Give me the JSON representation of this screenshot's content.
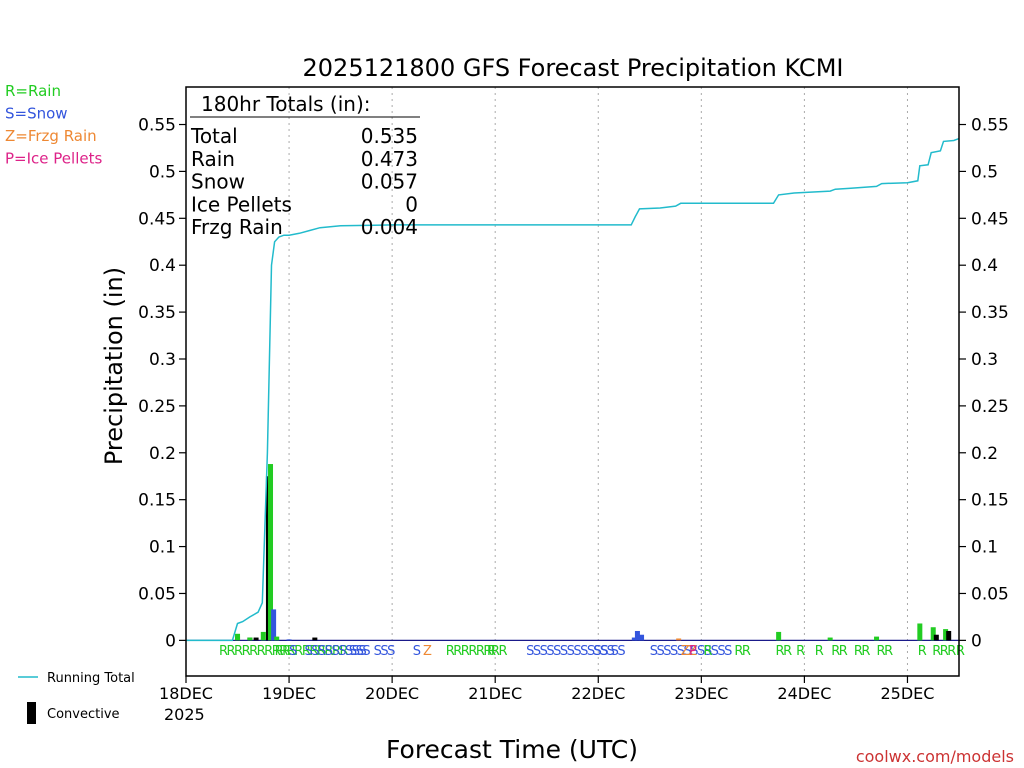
{
  "chart_data": {
    "type": "bar",
    "title": "2025121800 GFS Forecast Precipitation KCMI",
    "xlabel": "Forecast Time (UTC)",
    "ylabel": "Precipitation (in)",
    "ylim": [
      -0.038,
      0.59
    ],
    "xlim_days": [
      0,
      7.5
    ],
    "y_ticks": [
      0,
      0.05,
      0.1,
      0.15,
      0.2,
      0.25,
      0.3,
      0.35,
      0.4,
      0.45,
      0.5,
      0.55
    ],
    "y_tick_labels": [
      "0",
      "0.05",
      "0.1",
      "0.15",
      "0.2",
      "0.25",
      "0.3",
      "0.35",
      "0.4",
      "0.45",
      "0.5",
      "0.55"
    ],
    "x_ticks": [
      {
        "day": 0,
        "label": "18DEC",
        "sublabel": "2025"
      },
      {
        "day": 1,
        "label": "19DEC"
      },
      {
        "day": 2,
        "label": "20DEC"
      },
      {
        "day": 3,
        "label": "21DEC"
      },
      {
        "day": 4,
        "label": "22DEC"
      },
      {
        "day": 5,
        "label": "23DEC"
      },
      {
        "day": 6,
        "label": "24DEC"
      },
      {
        "day": 7,
        "label": "25DEC"
      }
    ],
    "legend_types": [
      {
        "text": "R=Rain",
        "color": "#22cc22"
      },
      {
        "text": "S=Snow",
        "color": "#3355dd"
      },
      {
        "text": "Z=Frzg Rain",
        "color": "#ee8833"
      },
      {
        "text": "P=Ice Pellets",
        "color": "#dd2288"
      }
    ],
    "legend_lines": [
      {
        "text": "Running Total",
        "color": "#22bbcc",
        "kind": "line"
      },
      {
        "text": "Convective",
        "color": "#000000",
        "kind": "bar"
      }
    ],
    "totals_box": {
      "header": "180hr Totals (in):",
      "rows": [
        {
          "label": "Total",
          "value": "0.535"
        },
        {
          "label": "Rain",
          "value": "0.473"
        },
        {
          "label": "Snow",
          "value": "0.057"
        },
        {
          "label": "Ice Pellets",
          "value": "0"
        },
        {
          "label": "Frzg Rain",
          "value": "0.004"
        }
      ]
    },
    "watermark": "coolwx.com/models",
    "running_total": {
      "color": "#22bbcc",
      "points": [
        [
          0,
          0
        ],
        [
          0.45,
          0
        ],
        [
          0.5,
          0.018
        ],
        [
          0.55,
          0.02
        ],
        [
          0.62,
          0.025
        ],
        [
          0.7,
          0.03
        ],
        [
          0.74,
          0.04
        ],
        [
          0.79,
          0.2
        ],
        [
          0.83,
          0.4
        ],
        [
          0.86,
          0.425
        ],
        [
          0.9,
          0.43
        ],
        [
          0.95,
          0.432
        ],
        [
          1.0,
          0.432
        ],
        [
          1.1,
          0.434
        ],
        [
          1.2,
          0.437
        ],
        [
          1.3,
          0.44
        ],
        [
          1.5,
          0.442
        ],
        [
          2.0,
          0.443
        ],
        [
          3.0,
          0.443
        ],
        [
          4.0,
          0.443
        ],
        [
          4.32,
          0.443
        ],
        [
          4.36,
          0.452
        ],
        [
          4.4,
          0.46
        ],
        [
          4.6,
          0.461
        ],
        [
          4.75,
          0.463
        ],
        [
          4.8,
          0.466
        ],
        [
          5.0,
          0.466
        ],
        [
          5.7,
          0.466
        ],
        [
          5.75,
          0.475
        ],
        [
          5.9,
          0.477
        ],
        [
          6.25,
          0.479
        ],
        [
          6.3,
          0.481
        ],
        [
          6.45,
          0.482
        ],
        [
          6.7,
          0.484
        ],
        [
          6.75,
          0.487
        ],
        [
          7.0,
          0.488
        ],
        [
          7.1,
          0.49
        ],
        [
          7.12,
          0.506
        ],
        [
          7.2,
          0.507
        ],
        [
          7.23,
          0.52
        ],
        [
          7.32,
          0.522
        ],
        [
          7.35,
          0.532
        ],
        [
          7.45,
          0.533
        ],
        [
          7.5,
          0.535
        ]
      ]
    },
    "bars": [
      {
        "day": 0.5,
        "value": 0.004,
        "kind": "convective"
      },
      {
        "day": 0.5,
        "value": 0.007,
        "kind": "rain"
      },
      {
        "day": 0.62,
        "value": 0.003,
        "kind": "convective"
      },
      {
        "day": 0.62,
        "value": 0.003,
        "kind": "rain"
      },
      {
        "day": 0.68,
        "value": 0.003,
        "kind": "convective"
      },
      {
        "day": 0.75,
        "value": 0.009,
        "kind": "rain"
      },
      {
        "day": 0.8,
        "value": 0.175,
        "kind": "convective"
      },
      {
        "day": 0.82,
        "value": 0.188,
        "kind": "rain"
      },
      {
        "day": 0.85,
        "value": 0.033,
        "kind": "snow"
      },
      {
        "day": 0.88,
        "value": 0.004,
        "kind": "rain"
      },
      {
        "day": 1.0,
        "value": 0.001,
        "kind": "snow"
      },
      {
        "day": 1.25,
        "value": 0.003,
        "kind": "convective"
      },
      {
        "day": 4.35,
        "value": 0.003,
        "kind": "snow"
      },
      {
        "day": 4.38,
        "value": 0.01,
        "kind": "snow"
      },
      {
        "day": 4.42,
        "value": 0.006,
        "kind": "snow"
      },
      {
        "day": 4.78,
        "value": 0.002,
        "kind": "frzg"
      },
      {
        "day": 5.75,
        "value": 0.009,
        "kind": "rain"
      },
      {
        "day": 6.25,
        "value": 0.003,
        "kind": "rain"
      },
      {
        "day": 6.7,
        "value": 0.004,
        "kind": "rain"
      },
      {
        "day": 7.12,
        "value": 0.018,
        "kind": "rain"
      },
      {
        "day": 7.25,
        "value": 0.014,
        "kind": "rain"
      },
      {
        "day": 7.28,
        "value": 0.006,
        "kind": "convective"
      },
      {
        "day": 7.37,
        "value": 0.012,
        "kind": "rain"
      },
      {
        "day": 7.4,
        "value": 0.01,
        "kind": "convective"
      }
    ],
    "ptype_markers": [
      {
        "day": 0.32,
        "letters": "RRRRRRRRRRRRRRRRR",
        "kind": "rain"
      },
      {
        "day": 0.86,
        "letters": "RR",
        "kind": "rain"
      },
      {
        "day": 1.0,
        "letters": "S",
        "kind": "snow"
      },
      {
        "day": 1.15,
        "letters": "SSSSSSSSS",
        "kind": "snow"
      },
      {
        "day": 1.58,
        "letters": "SSS",
        "kind": "snow"
      },
      {
        "day": 1.82,
        "letters": "SSS",
        "kind": "snow"
      },
      {
        "day": 2.2,
        "letters": "S",
        "kind": "snow"
      },
      {
        "day": 2.3,
        "letters": "Z",
        "kind": "frzg"
      },
      {
        "day": 2.52,
        "letters": "RRRRRRRR",
        "kind": "rain"
      },
      {
        "day": 2.92,
        "letters": "R",
        "kind": "rain"
      },
      {
        "day": 3.3,
        "letters": "SSSSSSSSSSSS",
        "kind": "snow"
      },
      {
        "day": 3.95,
        "letters": "SSS",
        "kind": "snow"
      },
      {
        "day": 4.12,
        "letters": "SS",
        "kind": "snow"
      },
      {
        "day": 4.5,
        "letters": "SSSSSSSSSSSS",
        "kind": "snow"
      },
      {
        "day": 4.8,
        "letters": "ZZ",
        "kind": "frzg"
      },
      {
        "day": 4.88,
        "letters": "P",
        "kind": "pellets"
      },
      {
        "day": 5.02,
        "letters": "R",
        "kind": "rain"
      },
      {
        "day": 5.32,
        "letters": "RR",
        "kind": "rain"
      },
      {
        "day": 5.72,
        "letters": "RR",
        "kind": "rain"
      },
      {
        "day": 5.92,
        "letters": "R",
        "kind": "rain"
      },
      {
        "day": 6.1,
        "letters": "R",
        "kind": "rain"
      },
      {
        "day": 6.26,
        "letters": "RR",
        "kind": "rain"
      },
      {
        "day": 6.48,
        "letters": "RR",
        "kind": "rain"
      },
      {
        "day": 6.7,
        "letters": "RR",
        "kind": "rain"
      },
      {
        "day": 7.1,
        "letters": "R",
        "kind": "rain"
      },
      {
        "day": 7.24,
        "letters": "RRR",
        "kind": "rain"
      },
      {
        "day": 7.47,
        "letters": "R",
        "kind": "rain"
      }
    ]
  },
  "colors": {
    "rain": "#22cc22",
    "snow": "#3355dd",
    "frzg": "#ee8833",
    "pellets": "#dd2288",
    "convective": "#000000",
    "running_total": "#22bbcc",
    "grid": "#aaaaaa",
    "watermark": "#cc3333"
  }
}
